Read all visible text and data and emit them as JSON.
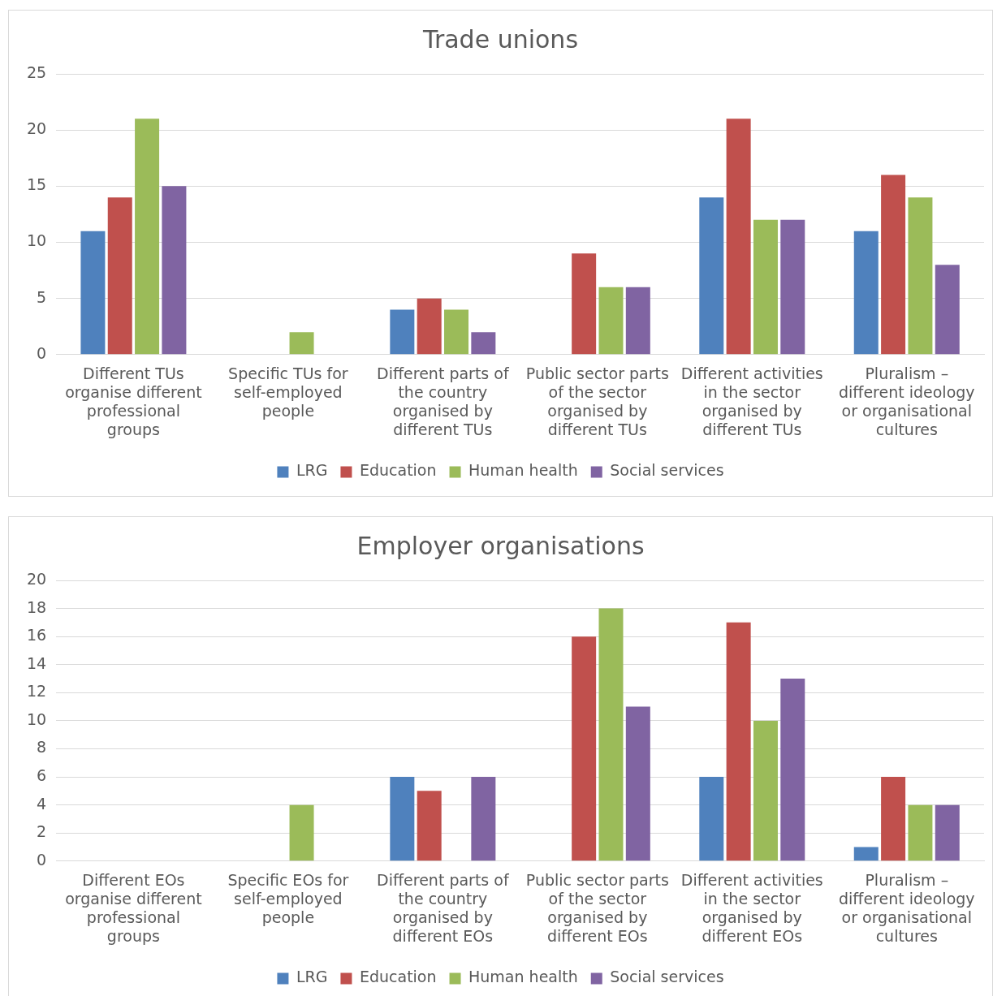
{
  "chart_data": [
    {
      "type": "bar",
      "title": "Trade unions",
      "categories": [
        "Different TUs organise different professional groups",
        "Specific TUs for self-employed people",
        "Different parts of the country organised by different TUs",
        "Public sector parts of the sector organised by different TUs",
        "Different activities in the sector organised by different TUs",
        "Pluralism – different ideology or organisational cultures"
      ],
      "series": [
        {
          "name": "LRG",
          "color": "#4f81bd",
          "values": [
            11,
            0,
            4,
            0,
            14,
            11
          ]
        },
        {
          "name": "Education",
          "color": "#c0504d",
          "values": [
            14,
            0,
            5,
            9,
            21,
            16
          ]
        },
        {
          "name": "Human health",
          "color": "#9bbb59",
          "values": [
            21,
            2,
            4,
            6,
            12,
            14
          ]
        },
        {
          "name": "Social services",
          "color": "#8064a2",
          "values": [
            15,
            0,
            2,
            6,
            12,
            8
          ]
        }
      ],
      "ylim": [
        0,
        25
      ],
      "yticks": [
        0,
        5,
        10,
        15,
        20,
        25
      ],
      "grid": "y",
      "legend": "bottom"
    },
    {
      "type": "bar",
      "title": "Employer organisations",
      "categories": [
        "Different EOs organise different professional groups",
        "Specific EOs for self-employed people",
        "Different parts of the country organised by different EOs",
        "Public sector parts of the sector organised by different EOs",
        "Different activities in the sector organised by different EOs",
        "Pluralism – different ideology or organisational cultures"
      ],
      "series": [
        {
          "name": "LRG",
          "color": "#4f81bd",
          "values": [
            0,
            0,
            6,
            0,
            6,
            1
          ]
        },
        {
          "name": "Education",
          "color": "#c0504d",
          "values": [
            0,
            0,
            5,
            16,
            17,
            6
          ]
        },
        {
          "name": "Human health",
          "color": "#9bbb59",
          "values": [
            0,
            4,
            0,
            18,
            10,
            4
          ]
        },
        {
          "name": "Social services",
          "color": "#8064a2",
          "values": [
            0,
            0,
            6,
            11,
            13,
            4
          ]
        }
      ],
      "ylim": [
        0,
        20
      ],
      "yticks": [
        0,
        2,
        4,
        6,
        8,
        10,
        12,
        14,
        16,
        18,
        20
      ],
      "grid": "y",
      "legend": "bottom"
    }
  ]
}
